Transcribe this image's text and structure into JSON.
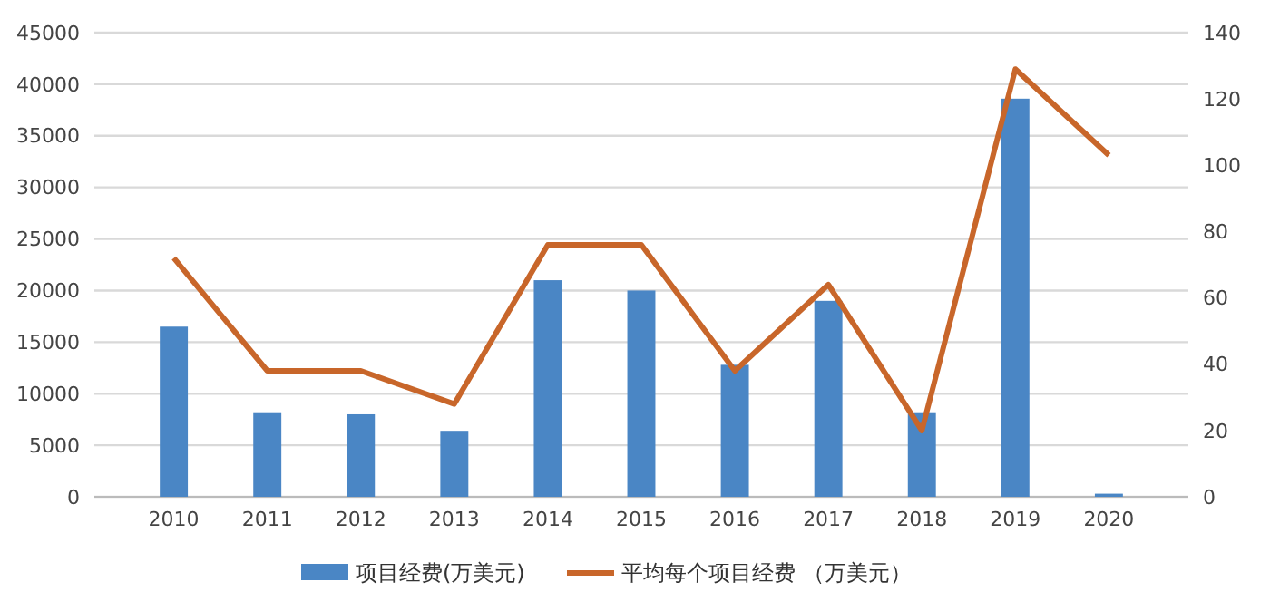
{
  "chart_data": {
    "type": "bar",
    "categories": [
      "2010",
      "2011",
      "2012",
      "2013",
      "2014",
      "2015",
      "2016",
      "2017",
      "2018",
      "2019",
      "2020"
    ],
    "series": [
      {
        "name": "项目经费(万美元)",
        "color": "#4a86c5",
        "values": [
          16500,
          8200,
          8000,
          6400,
          21000,
          20000,
          12800,
          19000,
          8200,
          38600,
          300
        ]
      },
      {
        "name": "平均每个项目经费  （万美元）",
        "type": "line",
        "axis": "y2",
        "color": "#c8662a",
        "values": [
          72,
          38,
          38,
          28,
          76,
          76,
          38,
          64,
          20,
          129,
          103
        ]
      }
    ],
    "ylim": [
      0,
      45000
    ],
    "yticks": [
      0,
      5000,
      10000,
      15000,
      20000,
      25000,
      30000,
      35000,
      40000,
      45000
    ],
    "y2lim": [
      0,
      140
    ],
    "y2ticks": [
      0,
      20,
      40,
      60,
      80,
      100,
      120,
      140
    ],
    "grid": "y",
    "legend": "bottom",
    "marker": "none",
    "line_style": "solid"
  }
}
